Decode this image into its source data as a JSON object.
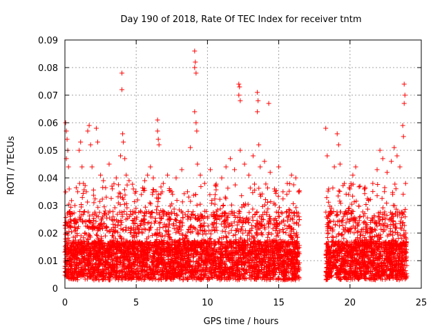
{
  "chart_data": {
    "type": "scatter",
    "title": "Day 190 of 2018, Rate Of TEC Index for receiver tntm",
    "xlabel": "GPS time / hours",
    "ylabel": "ROTI / TECUs",
    "xlim": [
      0,
      25
    ],
    "ylim": [
      0,
      0.09
    ],
    "xticks": [
      "0",
      "5",
      "10",
      "15",
      "20",
      "25"
    ],
    "yticks": [
      "0",
      "0.01",
      "0.02",
      "0.03",
      "0.04",
      "0.05",
      "0.06",
      "0.07",
      "0.08",
      "0.09"
    ],
    "grid": true,
    "marker": "+",
    "color": "#ff0000",
    "series": [
      {
        "points": [
          [
            0.05,
            0.06
          ],
          [
            0.1,
            0.057
          ],
          [
            0.15,
            0.054
          ],
          [
            0.2,
            0.05
          ],
          [
            0.1,
            0.047
          ],
          [
            0.25,
            0.044
          ],
          [
            0.3,
            0.036
          ],
          [
            0.7,
            0.03
          ],
          [
            0.9,
            0.035
          ],
          [
            1.0,
            0.05
          ],
          [
            1.1,
            0.053
          ],
          [
            1.2,
            0.044
          ],
          [
            1.3,
            0.038
          ],
          [
            1.5,
            0.035
          ],
          [
            1.6,
            0.057
          ],
          [
            1.7,
            0.059
          ],
          [
            1.8,
            0.052
          ],
          [
            1.9,
            0.044
          ],
          [
            2.2,
            0.058
          ],
          [
            2.3,
            0.053
          ],
          [
            2.5,
            0.041
          ],
          [
            2.7,
            0.039
          ],
          [
            2.9,
            0.033
          ],
          [
            3.1,
            0.045
          ],
          [
            3.3,
            0.037
          ],
          [
            3.6,
            0.04
          ],
          [
            3.9,
            0.048
          ],
          [
            4.0,
            0.078
          ],
          [
            4.0,
            0.072
          ],
          [
            4.05,
            0.056
          ],
          [
            4.1,
            0.053
          ],
          [
            4.2,
            0.047
          ],
          [
            4.3,
            0.041
          ],
          [
            4.5,
            0.039
          ],
          [
            4.8,
            0.036
          ],
          [
            5.1,
            0.032
          ],
          [
            5.3,
            0.028
          ],
          [
            5.6,
            0.039
          ],
          [
            5.8,
            0.041
          ],
          [
            6.0,
            0.044
          ],
          [
            6.2,
            0.04
          ],
          [
            6.5,
            0.061
          ],
          [
            6.5,
            0.057
          ],
          [
            6.55,
            0.054
          ],
          [
            6.6,
            0.052
          ],
          [
            6.9,
            0.038
          ],
          [
            7.2,
            0.041
          ],
          [
            7.5,
            0.035
          ],
          [
            7.8,
            0.04
          ],
          [
            8.2,
            0.043
          ],
          [
            8.6,
            0.035
          ],
          [
            8.8,
            0.051
          ],
          [
            9.1,
            0.086
          ],
          [
            9.15,
            0.082
          ],
          [
            9.1,
            0.08
          ],
          [
            9.2,
            0.078
          ],
          [
            9.1,
            0.064
          ],
          [
            9.2,
            0.06
          ],
          [
            9.25,
            0.057
          ],
          [
            9.3,
            0.045
          ],
          [
            9.5,
            0.041
          ],
          [
            9.8,
            0.038
          ],
          [
            10.2,
            0.043
          ],
          [
            10.6,
            0.037
          ],
          [
            11.0,
            0.04
          ],
          [
            11.3,
            0.044
          ],
          [
            11.6,
            0.047
          ],
          [
            11.9,
            0.043
          ],
          [
            12.2,
            0.074
          ],
          [
            12.25,
            0.073
          ],
          [
            12.2,
            0.07
          ],
          [
            12.3,
            0.068
          ],
          [
            12.3,
            0.05
          ],
          [
            12.6,
            0.045
          ],
          [
            12.9,
            0.041
          ],
          [
            13.2,
            0.048
          ],
          [
            13.5,
            0.071
          ],
          [
            13.55,
            0.068
          ],
          [
            13.5,
            0.064
          ],
          [
            13.6,
            0.052
          ],
          [
            13.7,
            0.044
          ],
          [
            14.0,
            0.046
          ],
          [
            14.3,
            0.067
          ],
          [
            14.4,
            0.042
          ],
          [
            14.7,
            0.036
          ],
          [
            15.0,
            0.044
          ],
          [
            15.3,
            0.035
          ],
          [
            15.6,
            0.038
          ],
          [
            15.9,
            0.041
          ],
          [
            16.2,
            0.04
          ],
          [
            16.4,
            0.035
          ],
          [
            18.3,
            0.058
          ],
          [
            18.4,
            0.048
          ],
          [
            18.5,
            0.036
          ],
          [
            18.7,
            0.029
          ],
          [
            18.9,
            0.044
          ],
          [
            19.1,
            0.056
          ],
          [
            19.2,
            0.052
          ],
          [
            19.3,
            0.045
          ],
          [
            19.6,
            0.038
          ],
          [
            19.9,
            0.034
          ],
          [
            20.2,
            0.041
          ],
          [
            20.4,
            0.044
          ],
          [
            20.7,
            0.037
          ],
          [
            21.0,
            0.036
          ],
          [
            21.3,
            0.032
          ],
          [
            21.6,
            0.038
          ],
          [
            21.9,
            0.043
          ],
          [
            22.1,
            0.05
          ],
          [
            22.3,
            0.047
          ],
          [
            22.6,
            0.042
          ],
          [
            22.9,
            0.046
          ],
          [
            23.1,
            0.051
          ],
          [
            23.3,
            0.048
          ],
          [
            23.5,
            0.044
          ],
          [
            23.7,
            0.059
          ],
          [
            23.75,
            0.055
          ],
          [
            23.8,
            0.074
          ],
          [
            23.85,
            0.07
          ],
          [
            23.8,
            0.067
          ],
          [
            23.9,
            0.038
          ]
        ]
      }
    ]
  }
}
